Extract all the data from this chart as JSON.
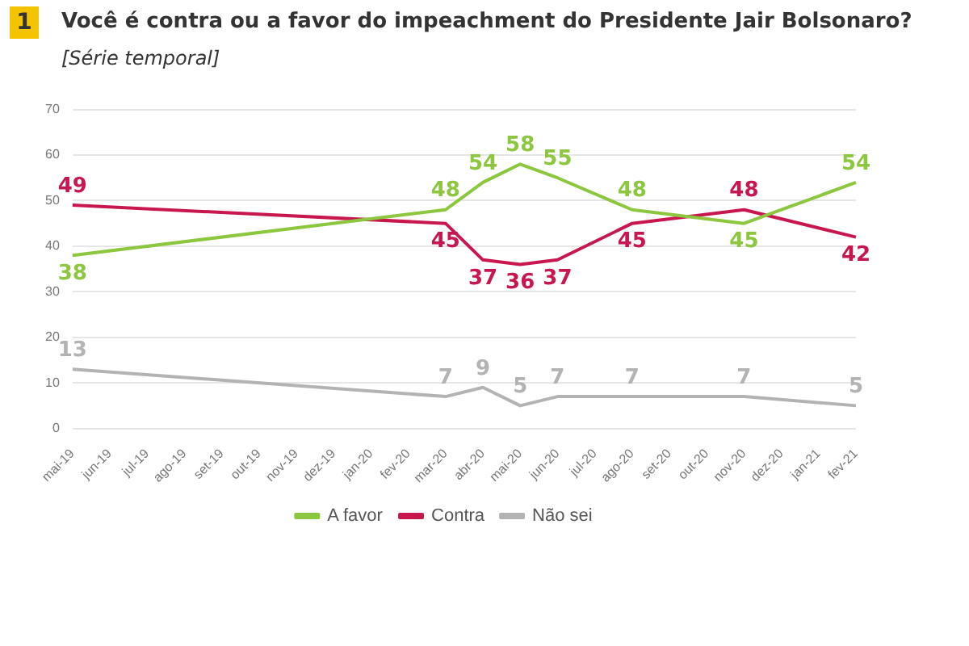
{
  "chart_data": {
    "type": "line",
    "title": "Você é contra ou a favor do impeachment do Presidente Jair Bolsonaro?",
    "subtitle": "[Série temporal]",
    "annotations": [
      "1"
    ],
    "categories": [
      "mai-19",
      "jun-19",
      "jul-19",
      "ago-19",
      "set-19",
      "out-19",
      "nov-19",
      "dez-19",
      "jan-20",
      "fev-20",
      "mar-20",
      "abr-20",
      "mai-20",
      "jun-20",
      "jul-20",
      "ago-20",
      "set-20",
      "out-20",
      "nov-20",
      "dez-20",
      "jan-21",
      "fev-21"
    ],
    "series": [
      {
        "name": "A favor",
        "color": "#8dc63f",
        "values": [
          38,
          null,
          null,
          null,
          null,
          null,
          null,
          null,
          null,
          null,
          48,
          54,
          58,
          55,
          null,
          48,
          null,
          null,
          45,
          null,
          null,
          54
        ]
      },
      {
        "name": "Contra",
        "color": "#c8174f",
        "values": [
          49,
          null,
          null,
          null,
          null,
          null,
          null,
          null,
          null,
          null,
          45,
          37,
          36,
          37,
          null,
          45,
          null,
          null,
          48,
          null,
          null,
          42
        ]
      },
      {
        "name": "Não sei",
        "color": "#b3b3b3",
        "values": [
          13,
          null,
          null,
          null,
          null,
          null,
          null,
          null,
          null,
          null,
          7,
          9,
          5,
          7,
          null,
          7,
          null,
          null,
          7,
          null,
          null,
          5
        ]
      }
    ],
    "ylim": [
      0,
      70
    ],
    "yticks": [
      0,
      10,
      20,
      30,
      40,
      50,
      60,
      70
    ],
    "grid": "y",
    "legend": "bottom",
    "data_labels": true,
    "marker": "none",
    "line_style": "solid"
  }
}
